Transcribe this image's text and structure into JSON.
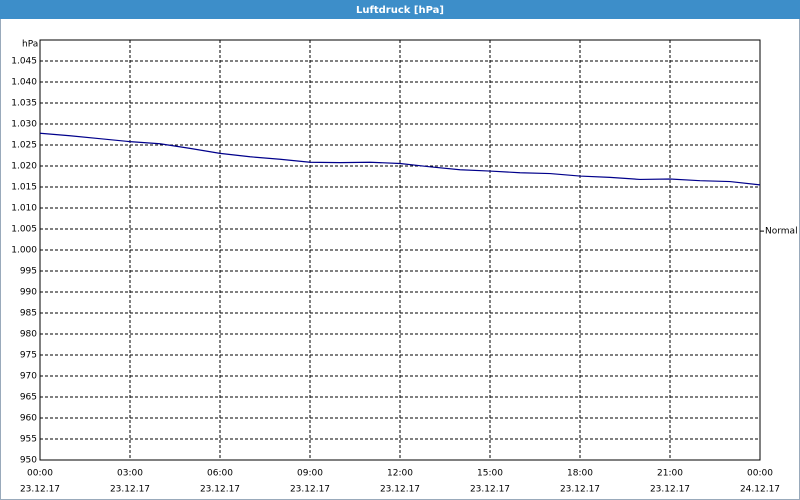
{
  "chart_data": {
    "type": "line",
    "title": "Luftdruck [hPa]",
    "y_label": "hPa",
    "x": [
      0,
      1,
      2,
      3,
      4,
      5,
      6,
      7,
      8,
      9,
      10,
      11,
      12,
      13,
      14,
      15,
      16,
      17,
      18,
      19,
      20,
      21,
      22,
      23,
      24
    ],
    "series": [
      {
        "color": "#00008b",
        "values": [
          1027.8,
          1027.2,
          1026.5,
          1025.8,
          1025.3,
          1024.2,
          1023.0,
          1022.2,
          1021.6,
          1020.9,
          1020.8,
          1020.9,
          1020.6,
          1019.8,
          1019.1,
          1018.8,
          1018.4,
          1018.2,
          1017.6,
          1017.3,
          1016.8,
          1016.9,
          1016.5,
          1016.3,
          1015.5
        ]
      }
    ],
    "xlim": [
      0,
      24
    ],
    "xticks": [
      {
        "value": 0,
        "label": "00:00"
      },
      {
        "value": 3,
        "label": "03:00"
      },
      {
        "value": 6,
        "label": "06:00"
      },
      {
        "value": 9,
        "label": "09:00"
      },
      {
        "value": 12,
        "label": "12:00"
      },
      {
        "value": 15,
        "label": "15:00"
      },
      {
        "value": 18,
        "label": "18:00"
      },
      {
        "value": 21,
        "label": "21:00"
      },
      {
        "value": 24,
        "label": "00:00"
      }
    ],
    "xtick_dates": [
      "23.12.17",
      "23.12.17",
      "23.12.17",
      "23.12.17",
      "23.12.17",
      "23.12.17",
      "23.12.17",
      "23.12.17",
      "24.12.17"
    ],
    "ylim": [
      950,
      1050
    ],
    "yticks": [
      950,
      955,
      960,
      965,
      970,
      975,
      980,
      985,
      990,
      995,
      {
        "value": 1000,
        "label": "1.000"
      },
      {
        "value": 1005,
        "label": "1.005"
      },
      {
        "value": 1010,
        "label": "1.010"
      },
      {
        "value": 1015,
        "label": "1.015"
      },
      {
        "value": 1020,
        "label": "1.020"
      },
      {
        "value": 1025,
        "label": "1.025"
      },
      {
        "value": 1030,
        "label": "1.030"
      },
      {
        "value": 1035,
        "label": "1.035"
      },
      {
        "value": 1040,
        "label": "1.040"
      },
      {
        "value": 1045,
        "label": "1.045"
      }
    ],
    "grid": true,
    "normal_marker": {
      "label": "Normal",
      "value": 1004.5
    }
  }
}
